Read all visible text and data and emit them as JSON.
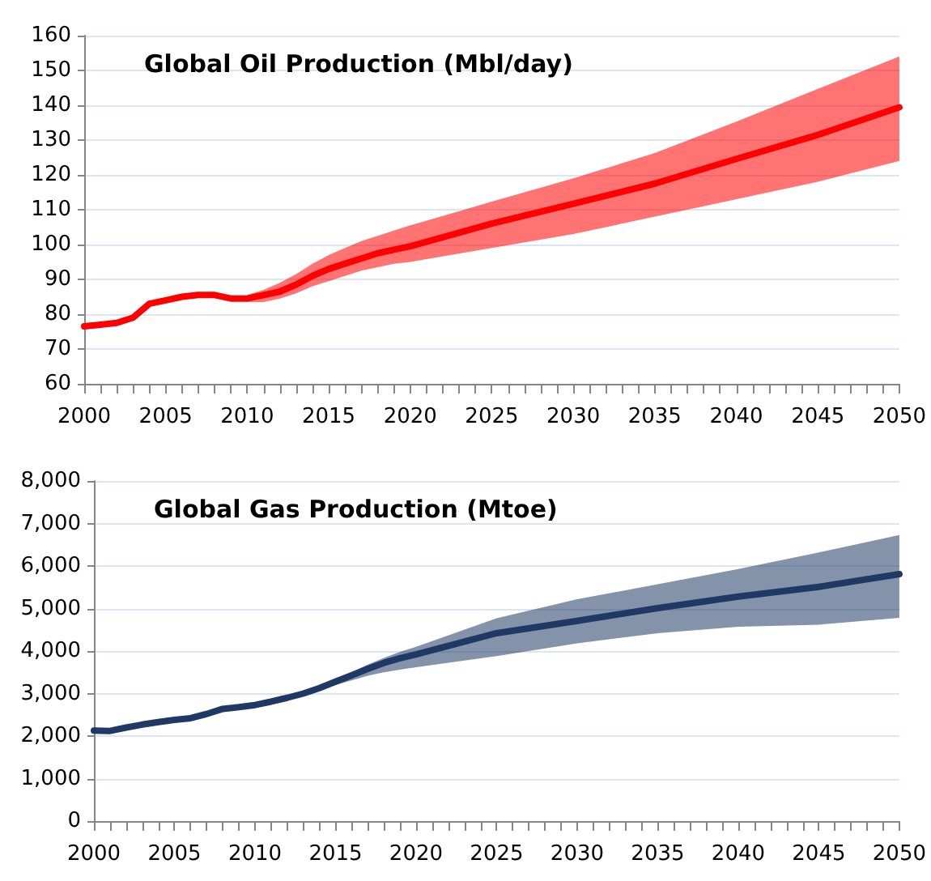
{
  "chart_data": [
    {
      "type": "line",
      "title": "Global Oil Production (Mbl/day)",
      "x": [
        2000,
        2001,
        2002,
        2003,
        2004,
        2005,
        2006,
        2007,
        2008,
        2009,
        2010,
        2011,
        2012,
        2013,
        2014,
        2015,
        2016,
        2017,
        2018,
        2019,
        2020,
        2025,
        2030,
        2035,
        2040,
        2045,
        2050
      ],
      "series": [
        {
          "color": "#ff0000",
          "values": [
            76.5,
            77,
            77.5,
            79,
            83,
            84,
            85,
            85.5,
            85.5,
            84.5,
            84.5,
            85.5,
            86.5,
            88.5,
            91,
            93,
            94.5,
            96,
            97.5,
            98.5,
            99.5,
            106,
            111.7,
            117.5,
            124.6,
            131.5,
            139.4
          ],
          "lower": [
            null,
            null,
            null,
            null,
            null,
            null,
            null,
            null,
            null,
            null,
            83.5,
            83.5,
            84.5,
            86,
            88,
            89.5,
            91,
            92.5,
            93.5,
            94.5,
            95,
            99,
            103,
            108,
            113,
            118,
            124
          ],
          "upper": [
            null,
            null,
            null,
            null,
            null,
            null,
            null,
            null,
            null,
            null,
            85.5,
            87,
            89,
            91.5,
            94.5,
            97,
            99,
            101,
            102.5,
            104,
            105.5,
            112.3,
            119,
            126.3,
            135.3,
            144.7,
            154
          ]
        }
      ],
      "xlim": [
        2000,
        2050
      ],
      "xticks": [
        2000,
        2005,
        2010,
        2015,
        2020,
        2025,
        2030,
        2035,
        2040,
        2045,
        2050
      ],
      "ylim": [
        60,
        160
      ],
      "yticks": [
        60,
        70,
        80,
        90,
        100,
        110,
        120,
        130,
        140,
        150,
        160
      ],
      "grid": "y",
      "marker": "none",
      "line_style": "solid"
    },
    {
      "type": "line",
      "title": "Global Gas Production (Mtoe)",
      "x": [
        2000,
        2001,
        2002,
        2003,
        2004,
        2005,
        2006,
        2007,
        2008,
        2009,
        2010,
        2011,
        2012,
        2013,
        2014,
        2015,
        2016,
        2017,
        2018,
        2019,
        2020,
        2025,
        2030,
        2035,
        2040,
        2045,
        2050
      ],
      "series": [
        {
          "color": "#1f3864",
          "values": [
            2130,
            2120,
            2200,
            2270,
            2330,
            2380,
            2420,
            2520,
            2640,
            2680,
            2730,
            2810,
            2900,
            3000,
            3130,
            3280,
            3430,
            3580,
            3720,
            3830,
            3920,
            4420,
            4710,
            5010,
            5280,
            5510,
            5810
          ],
          "lower": [
            null,
            null,
            null,
            null,
            null,
            null,
            null,
            null,
            null,
            null,
            null,
            null,
            null,
            2980,
            3090,
            3200,
            3310,
            3420,
            3500,
            3560,
            3620,
            3880,
            4180,
            4420,
            4570,
            4620,
            4780
          ],
          "upper": [
            null,
            null,
            null,
            null,
            null,
            null,
            null,
            null,
            null,
            null,
            null,
            null,
            null,
            3020,
            3160,
            3330,
            3500,
            3680,
            3840,
            3980,
            4100,
            4770,
            5220,
            5570,
            5930,
            6320,
            6730
          ]
        }
      ],
      "xlim": [
        2000,
        2050
      ],
      "xticks": [
        2000,
        2005,
        2010,
        2015,
        2020,
        2025,
        2030,
        2035,
        2040,
        2045,
        2050
      ],
      "ylim": [
        0,
        8000
      ],
      "yticks": [
        0,
        {
          "value": 1000,
          "label": "1,000"
        },
        {
          "value": 2000,
          "label": "2,000"
        },
        {
          "value": 3000,
          "label": "3,000"
        },
        {
          "value": 4000,
          "label": "4,000"
        },
        {
          "value": 5000,
          "label": "5,000"
        },
        {
          "value": 6000,
          "label": "6,000"
        },
        {
          "value": 7000,
          "label": "7,000"
        },
        {
          "value": 8000,
          "label": "8,000"
        }
      ],
      "grid": "y",
      "marker": "none",
      "line_style": "solid"
    }
  ]
}
